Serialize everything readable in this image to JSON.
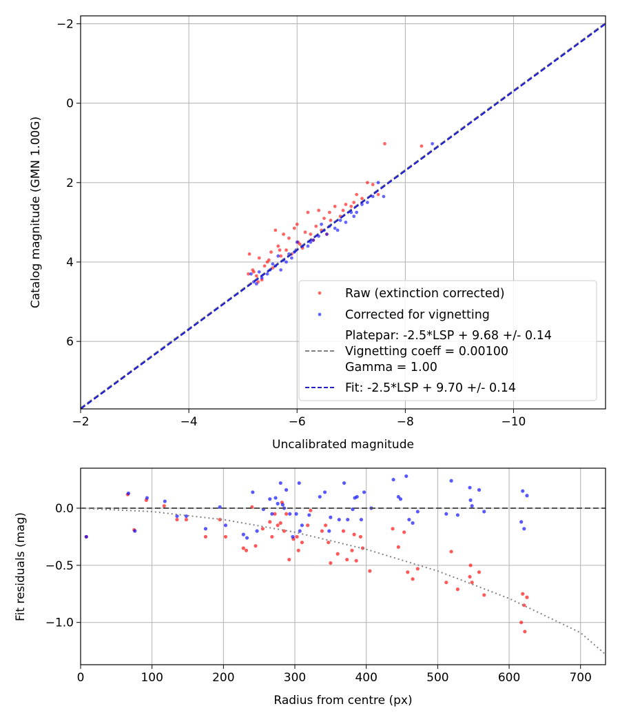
{
  "chart_data": [
    {
      "type": "scatter",
      "xlabel": "Uncalibrated magnitude",
      "ylabel": "Catalog magnitude (GMN 1.00G)",
      "xlim": [
        -2.0,
        -11.7
      ],
      "ylim": [
        7.7,
        -2.2
      ],
      "x_axis_inverted": true,
      "y_axis_inverted": true,
      "grid": true,
      "legend_position": "lower-right",
      "xticks": [
        -2,
        -4,
        -6,
        -8,
        -10
      ],
      "xtick_labels": [
        "−2",
        "−4",
        "−6",
        "−8",
        "−10"
      ],
      "yticks": [
        -2,
        0,
        2,
        4,
        6
      ],
      "ytick_labels": [
        "−2",
        "0",
        "2",
        "4",
        "6"
      ],
      "series": [
        {
          "name": "Raw (extinction corrected)",
          "kind": "scatter",
          "color": "#ff0000",
          "points": [
            [
              -5.12,
              3.8
            ],
            [
              -5.18,
              4.2
            ],
            [
              -5.1,
              4.3
            ],
            [
              -5.25,
              4.35
            ],
            [
              -5.3,
              3.9
            ],
            [
              -5.35,
              4.45
            ],
            [
              -5.4,
              4.1
            ],
            [
              -5.48,
              3.95
            ],
            [
              -5.52,
              3.75
            ],
            [
              -5.55,
              4.15
            ],
            [
              -5.6,
              3.2
            ],
            [
              -5.65,
              3.6
            ],
            [
              -5.7,
              3.85
            ],
            [
              -5.75,
              3.3
            ],
            [
              -5.8,
              3.7
            ],
            [
              -5.85,
              3.4
            ],
            [
              -5.9,
              3.8
            ],
            [
              -5.95,
              3.15
            ],
            [
              -6.0,
              3.05
            ],
            [
              -6.05,
              3.55
            ],
            [
              -6.1,
              3.65
            ],
            [
              -6.15,
              3.25
            ],
            [
              -6.2,
              2.75
            ],
            [
              -6.3,
              3.45
            ],
            [
              -6.35,
              3.1
            ],
            [
              -6.4,
              2.7
            ],
            [
              -6.45,
              3.2
            ],
            [
              -6.5,
              2.9
            ],
            [
              -6.55,
              3.3
            ],
            [
              -6.6,
              2.75
            ],
            [
              -6.7,
              2.6
            ],
            [
              -6.8,
              2.85
            ],
            [
              -6.9,
              2.55
            ],
            [
              -7.0,
              2.6
            ],
            [
              -7.1,
              2.3
            ],
            [
              -7.2,
              2.4
            ],
            [
              -7.3,
              2.0
            ],
            [
              -7.4,
              2.05
            ],
            [
              -7.5,
              2.3
            ],
            [
              -7.62,
              1.02
            ],
            [
              -8.3,
              1.08
            ],
            [
              -5.2,
              4.25
            ],
            [
              -5.28,
              4.5
            ],
            [
              -5.45,
              4.0
            ],
            [
              -5.68,
              3.7
            ],
            [
              -6.02,
              3.5
            ],
            [
              -6.25,
              3.3
            ],
            [
              -6.62,
              2.95
            ],
            [
              -6.85,
              2.7
            ],
            [
              -7.05,
              2.5
            ]
          ]
        },
        {
          "name": "Corrected for vignetting",
          "kind": "scatter",
          "color": "#0000ff",
          "points": [
            [
              -5.15,
              4.3
            ],
            [
              -5.2,
              4.5
            ],
            [
              -5.25,
              4.55
            ],
            [
              -5.3,
              4.25
            ],
            [
              -5.35,
              4.4
            ],
            [
              -5.45,
              4.3
            ],
            [
              -5.5,
              4.2
            ],
            [
              -5.55,
              4.05
            ],
            [
              -5.6,
              4.1
            ],
            [
              -5.7,
              4.2
            ],
            [
              -5.75,
              3.95
            ],
            [
              -5.8,
              4.0
            ],
            [
              -5.85,
              3.8
            ],
            [
              -5.9,
              3.9
            ],
            [
              -5.95,
              3.75
            ],
            [
              -6.0,
              3.5
            ],
            [
              -6.1,
              3.6
            ],
            [
              -6.2,
              3.6
            ],
            [
              -6.3,
              3.45
            ],
            [
              -6.4,
              3.35
            ],
            [
              -6.5,
              3.2
            ],
            [
              -6.6,
              3.1
            ],
            [
              -6.7,
              3.15
            ],
            [
              -6.8,
              2.95
            ],
            [
              -6.9,
              3.0
            ],
            [
              -7.0,
              2.75
            ],
            [
              -7.1,
              2.75
            ],
            [
              -7.2,
              2.55
            ],
            [
              -7.3,
              2.5
            ],
            [
              -7.4,
              2.35
            ],
            [
              -7.5,
              2.0
            ],
            [
              -7.6,
              2.35
            ],
            [
              -8.5,
              1.02
            ],
            [
              -6.45,
              3.05
            ],
            [
              -6.75,
              3.2
            ],
            [
              -7.05,
              2.85
            ],
            [
              -5.65,
              3.85
            ],
            [
              -5.98,
              3.7
            ],
            [
              -6.25,
              3.5
            ],
            [
              -6.55,
              3.3
            ]
          ]
        },
        {
          "name": "Platepar: -2.5*LSP + 9.68 +/- 0.14\nVignetting coeff = 0.00100\nGamma = 1.00",
          "kind": "line",
          "style": "dashed",
          "color": "#808080",
          "x": [
            -2.0,
            -11.7
          ],
          "y": [
            7.68,
            -2.02
          ]
        },
        {
          "name": "Fit: -2.5*LSP + 9.70 +/- 0.14",
          "kind": "line",
          "style": "dashed",
          "color": "#2020d0",
          "x": [
            -2.0,
            -11.7
          ],
          "y": [
            7.7,
            -2.0
          ]
        }
      ],
      "legend": [
        {
          "label": "Raw (extinction corrected)",
          "marker": "dot",
          "color": "#ff0000"
        },
        {
          "label": "Corrected for vignetting",
          "marker": "dot",
          "color": "#0000ff"
        },
        {
          "label_lines": [
            "Platepar: -2.5*LSP + 9.68 +/- 0.14",
            "Vignetting coeff = 0.00100",
            "Gamma = 1.00"
          ],
          "marker": "dash",
          "color": "#808080"
        },
        {
          "label": "Fit: -2.5*LSP + 9.70 +/- 0.14",
          "marker": "dash",
          "color": "#2020d0"
        }
      ]
    },
    {
      "type": "scatter",
      "xlabel": "Radius from centre (px)",
      "ylabel": "Fit residuals (mag)",
      "xlim": [
        0,
        735
      ],
      "ylim": [
        -1.37,
        0.35
      ],
      "grid": true,
      "xticks": [
        0,
        100,
        200,
        300,
        400,
        500,
        600,
        700
      ],
      "xtick_labels": [
        "0",
        "100",
        "200",
        "300",
        "400",
        "500",
        "600",
        "700"
      ],
      "yticks": [
        0.0,
        -0.5,
        -1.0
      ],
      "ytick_labels": [
        "0.0",
        "−0.5",
        "−1.0"
      ],
      "series": [
        {
          "name": "raw-residuals",
          "kind": "scatter",
          "color": "#ff0000",
          "points": [
            [
              8,
              -0.25
            ],
            [
              66,
              0.12
            ],
            [
              75,
              -0.19
            ],
            [
              92,
              0.07
            ],
            [
              117,
              0.02
            ],
            [
              135,
              -0.1
            ],
            [
              148,
              -0.1
            ],
            [
              175,
              -0.25
            ],
            [
              195,
              -0.1
            ],
            [
              203,
              -0.25
            ],
            [
              228,
              -0.35
            ],
            [
              232,
              -0.37
            ],
            [
              240,
              0.01
            ],
            [
              245,
              -0.33
            ],
            [
              255,
              -0.18
            ],
            [
              265,
              -0.12
            ],
            [
              268,
              -0.25
            ],
            [
              272,
              -0.05
            ],
            [
              276,
              -0.15
            ],
            [
              280,
              -0.13
            ],
            [
              282,
              0.05
            ],
            [
              285,
              -0.2
            ],
            [
              288,
              -0.05
            ],
            [
              292,
              -0.45
            ],
            [
              298,
              -0.27
            ],
            [
              303,
              -0.25
            ],
            [
              305,
              -0.37
            ],
            [
              310,
              -0.3
            ],
            [
              318,
              -0.15
            ],
            [
              322,
              -0.02
            ],
            [
              338,
              -0.2
            ],
            [
              343,
              -0.15
            ],
            [
              347,
              -0.3
            ],
            [
              350,
              -0.48
            ],
            [
              360,
              -0.4
            ],
            [
              368,
              -0.2
            ],
            [
              373,
              -0.45
            ],
            [
              380,
              -0.37
            ],
            [
              383,
              -0.23
            ],
            [
              386,
              -0.46
            ],
            [
              392,
              -0.25
            ],
            [
              395,
              -0.35
            ],
            [
              405,
              -0.55
            ],
            [
              437,
              -0.18
            ],
            [
              445,
              -0.34
            ],
            [
              453,
              -0.21
            ],
            [
              458,
              -0.56
            ],
            [
              465,
              -0.62
            ],
            [
              472,
              -0.53
            ],
            [
              512,
              -0.65
            ],
            [
              519,
              -0.38
            ],
            [
              528,
              -0.71
            ],
            [
              545,
              -0.6
            ],
            [
              546,
              -0.5
            ],
            [
              548,
              -0.65
            ],
            [
              558,
              -0.56
            ],
            [
              565,
              -0.76
            ],
            [
              617,
              -1.0
            ],
            [
              619,
              -0.75
            ],
            [
              621,
              -0.85
            ],
            [
              622,
              -1.08
            ],
            [
              625,
              -0.78
            ]
          ]
        },
        {
          "name": "corrected-residuals",
          "kind": "scatter",
          "color": "#0000ff",
          "points": [
            [
              8,
              -0.25
            ],
            [
              67,
              0.13
            ],
            [
              76,
              -0.2
            ],
            [
              93,
              0.09
            ],
            [
              118,
              0.06
            ],
            [
              135,
              -0.07
            ],
            [
              148,
              -0.07
            ],
            [
              175,
              -0.18
            ],
            [
              195,
              0.01
            ],
            [
              203,
              -0.15
            ],
            [
              228,
              -0.23
            ],
            [
              233,
              -0.26
            ],
            [
              241,
              0.14
            ],
            [
              247,
              -0.2
            ],
            [
              256,
              -0.01
            ],
            [
              265,
              0.08
            ],
            [
              268,
              -0.05
            ],
            [
              273,
              0.09
            ],
            [
              276,
              0.04
            ],
            [
              280,
              0.22
            ],
            [
              283,
              0.03
            ],
            [
              285,
              0.0
            ],
            [
              288,
              0.16
            ],
            [
              293,
              -0.05
            ],
            [
              297,
              -0.25
            ],
            [
              302,
              -0.05
            ],
            [
              306,
              0.22
            ],
            [
              307,
              -0.2
            ],
            [
              310,
              -0.15
            ],
            [
              320,
              -0.06
            ],
            [
              335,
              0.1
            ],
            [
              342,
              0.14
            ],
            [
              348,
              -0.2
            ],
            [
              350,
              -0.08
            ],
            [
              362,
              -0.1
            ],
            [
              369,
              0.22
            ],
            [
              374,
              -0.1
            ],
            [
              381,
              -0.01
            ],
            [
              384,
              0.09
            ],
            [
              387,
              0.1
            ],
            [
              393,
              -0.1
            ],
            [
              397,
              0.14
            ],
            [
              407,
              0.0
            ],
            [
              438,
              0.25
            ],
            [
              445,
              0.1
            ],
            [
              448,
              0.08
            ],
            [
              456,
              0.28
            ],
            [
              460,
              -0.1
            ],
            [
              465,
              -0.13
            ],
            [
              472,
              -0.03
            ],
            [
              512,
              -0.05
            ],
            [
              519,
              0.24
            ],
            [
              528,
              -0.06
            ],
            [
              545,
              0.18
            ],
            [
              546,
              0.07
            ],
            [
              548,
              0.02
            ],
            [
              558,
              0.16
            ],
            [
              565,
              -0.03
            ],
            [
              617,
              -0.12
            ],
            [
              619,
              0.15
            ],
            [
              621,
              -0.18
            ],
            [
              625,
              0.11
            ]
          ]
        },
        {
          "name": "zero-line",
          "kind": "line",
          "style": "dashed",
          "color": "#505050",
          "x": [
            0,
            735
          ],
          "y": [
            0.0,
            0.0
          ]
        },
        {
          "name": "vignetting-model",
          "kind": "line",
          "style": "dotted",
          "color": "#808080",
          "x": [
            0,
            100,
            200,
            300,
            400,
            500,
            600,
            700,
            735
          ],
          "y": [
            0.0,
            -0.03,
            -0.1,
            -0.21,
            -0.36,
            -0.55,
            -0.79,
            -1.09,
            -1.28
          ]
        }
      ]
    }
  ]
}
